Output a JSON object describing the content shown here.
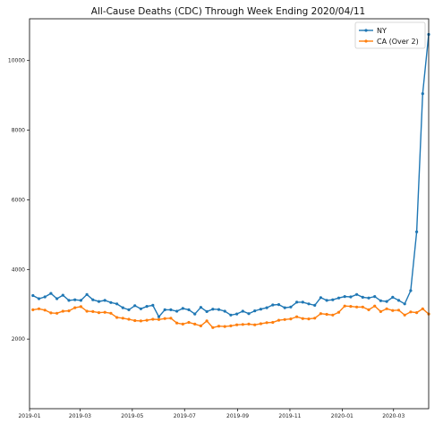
{
  "chart_data": {
    "type": "line",
    "title": "All-Cause Deaths (CDC) Through Week Ending 2020/04/11",
    "xlabel": "",
    "ylabel": "",
    "x_start": "2019-01-01",
    "x_end": "2020-04-11",
    "ylim": [
      0,
      11200
    ],
    "x_tick_labels": [
      "2019-01",
      "2019-03",
      "2019-05",
      "2019-07",
      "2019-09",
      "2019-11",
      "2020-01",
      "2020-03"
    ],
    "y_ticks": [
      2000,
      4000,
      6000,
      8000,
      10000
    ],
    "legend_position": "top-right",
    "grid": false,
    "series": [
      {
        "name": "NY",
        "color": "#1f77b4",
        "values": [
          3250,
          3160,
          3210,
          3310,
          3160,
          3260,
          3110,
          3130,
          3110,
          3280,
          3130,
          3080,
          3110,
          3050,
          3010,
          2900,
          2840,
          2960,
          2870,
          2940,
          2970,
          2640,
          2840,
          2840,
          2800,
          2880,
          2840,
          2720,
          2910,
          2790,
          2860,
          2850,
          2800,
          2690,
          2720,
          2800,
          2730,
          2810,
          2860,
          2900,
          2980,
          2990,
          2900,
          2920,
          3060,
          3060,
          3010,
          2970,
          3190,
          3110,
          3130,
          3180,
          3220,
          3210,
          3280,
          3200,
          3180,
          3220,
          3100,
          3080,
          3200,
          3110,
          3010,
          3390,
          5080,
          9050,
          10750
        ]
      },
      {
        "name": "CA (Over 2)",
        "color": "#ff7f0e",
        "values": [
          2840,
          2870,
          2830,
          2750,
          2740,
          2800,
          2810,
          2900,
          2930,
          2800,
          2790,
          2760,
          2770,
          2740,
          2620,
          2600,
          2570,
          2530,
          2520,
          2540,
          2570,
          2560,
          2590,
          2600,
          2460,
          2430,
          2480,
          2430,
          2380,
          2520,
          2330,
          2370,
          2360,
          2380,
          2410,
          2420,
          2430,
          2410,
          2440,
          2470,
          2480,
          2540,
          2560,
          2580,
          2640,
          2590,
          2580,
          2600,
          2730,
          2710,
          2690,
          2770,
          2950,
          2940,
          2920,
          2920,
          2840,
          2950,
          2790,
          2870,
          2820,
          2830,
          2690,
          2780,
          2760,
          2870,
          2720
        ]
      }
    ]
  }
}
